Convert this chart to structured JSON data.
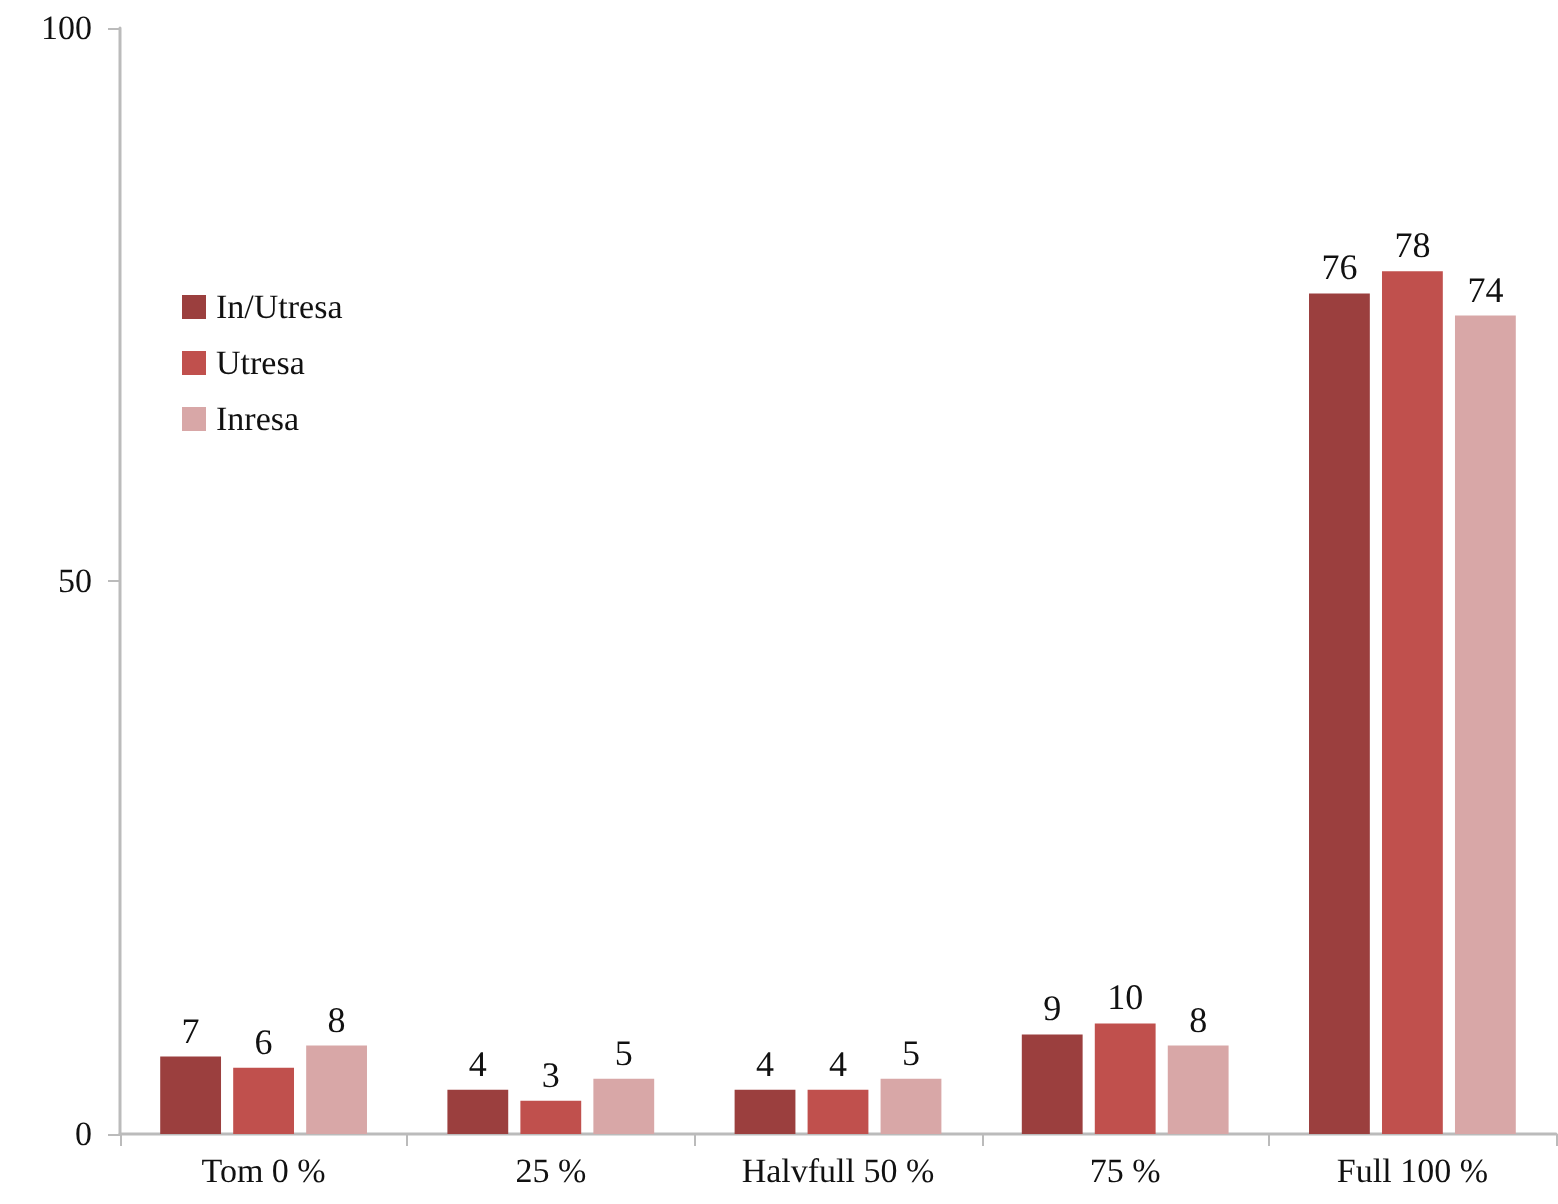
{
  "chart_data": {
    "type": "bar",
    "categories": [
      "Tom 0 %",
      "25 %",
      "Halvfull 50 %",
      "75 %",
      "Full 100 %"
    ],
    "series": [
      {
        "name": "In/Utresa",
        "color": "#9b3f3e",
        "values": [
          7,
          4,
          4,
          9,
          76
        ]
      },
      {
        "name": "Utresa",
        "color": "#c0504d",
        "values": [
          6,
          3,
          4,
          10,
          78
        ]
      },
      {
        "name": "Inresa",
        "color": "#d8a7a7",
        "values": [
          8,
          5,
          5,
          8,
          74
        ]
      }
    ],
    "ylim": [
      0,
      100
    ],
    "yticks": [
      0,
      50,
      100
    ],
    "data_labels": true,
    "legend": "top left"
  }
}
